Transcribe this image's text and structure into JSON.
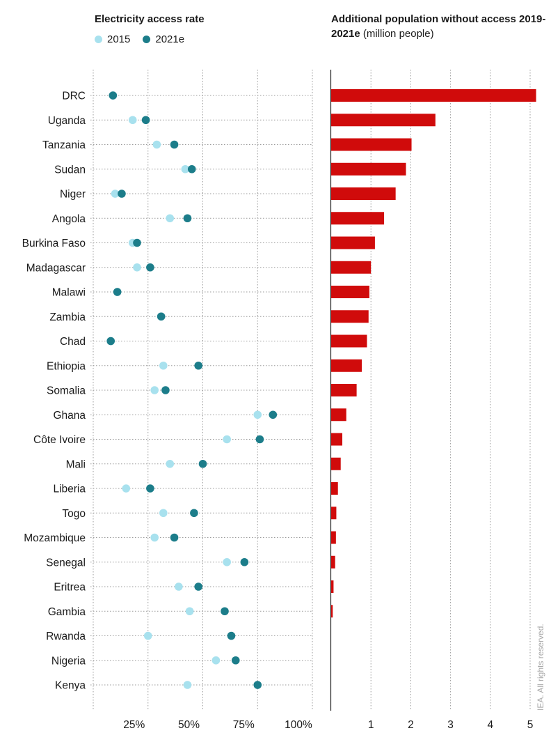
{
  "left_panel": {
    "title": "Electricity access rate",
    "legend": [
      {
        "label": "2015",
        "color": "#a8e1ee"
      },
      {
        "label": "2021e",
        "color": "#1c7d8a"
      }
    ]
  },
  "right_panel": {
    "title_bold": "Additional population without access 2019-2021e",
    "title_rest": "(million people)"
  },
  "credit": "IEA. All rights reserved.",
  "colors": {
    "bar": "#d00b0b",
    "dot_2015": "#a8e1ee",
    "dot_2021": "#1c7d8a",
    "grid": "#9a9a9a"
  },
  "chart_data": [
    {
      "type": "scatter",
      "title": "Electricity access rate",
      "categories": [
        "DRC",
        "Uganda",
        "Tanzania",
        "Sudan",
        "Niger",
        "Angola",
        "Burkina Faso",
        "Madagascar",
        "Malawi",
        "Zambia",
        "Chad",
        "Ethiopia",
        "Somalia",
        "Ghana",
        "Côte Ivoire",
        "Mali",
        "Liberia",
        "Togo",
        "Mozambique",
        "Senegal",
        "Eritrea",
        "Gambia",
        "Rwanda",
        "Nigeria",
        "Kenya"
      ],
      "series": [
        {
          "name": "2015",
          "values": [
            9,
            18,
            29,
            42,
            10,
            35,
            18,
            20,
            11,
            31,
            8,
            32,
            28,
            75,
            61,
            35,
            15,
            32,
            28,
            61,
            39,
            44,
            25,
            56,
            43
          ]
        },
        {
          "name": "2021e",
          "values": [
            9,
            24,
            37,
            45,
            13,
            43,
            20,
            26,
            11,
            31,
            8,
            48,
            33,
            82,
            76,
            50,
            26,
            46,
            37,
            69,
            48,
            60,
            63,
            65,
            75
          ]
        }
      ],
      "xlim": [
        0,
        100
      ],
      "x_ticks": [
        "25%",
        "50%",
        "75%",
        "100%"
      ],
      "x_tick_values": [
        25,
        50,
        75,
        100
      ],
      "grid": true,
      "legend_position": "top"
    },
    {
      "type": "bar",
      "orientation": "horizontal",
      "title": "Additional population without access 2019-2021e (million people)",
      "categories": [
        "DRC",
        "Uganda",
        "Tanzania",
        "Sudan",
        "Niger",
        "Angola",
        "Burkina Faso",
        "Madagascar",
        "Malawi",
        "Zambia",
        "Chad",
        "Ethiopia",
        "Somalia",
        "Ghana",
        "Côte Ivoire",
        "Mali",
        "Liberia",
        "Togo",
        "Mozambique",
        "Senegal",
        "Eritrea",
        "Gambia",
        "Rwanda",
        "Nigeria",
        "Kenya"
      ],
      "values": [
        5.15,
        2.62,
        2.02,
        1.88,
        1.62,
        1.33,
        1.1,
        1.0,
        0.96,
        0.94,
        0.9,
        0.77,
        0.64,
        0.38,
        0.28,
        0.24,
        0.17,
        0.13,
        0.12,
        0.1,
        0.06,
        0.04,
        0,
        0,
        0
      ],
      "xlim": [
        0,
        5.2
      ],
      "x_ticks": [
        "1",
        "2",
        "3",
        "4",
        "5"
      ],
      "x_tick_values": [
        1,
        2,
        3,
        4,
        5
      ],
      "grid": true
    }
  ]
}
